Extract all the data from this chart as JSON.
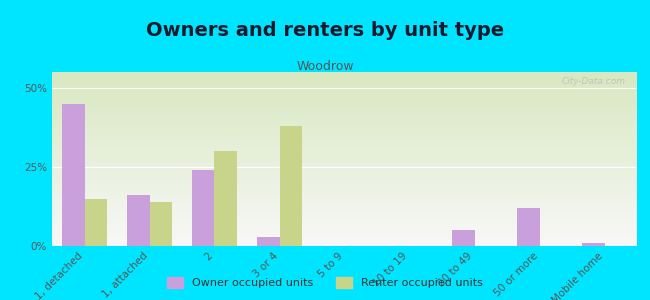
{
  "title": "Owners and renters by unit type",
  "subtitle": "Woodrow",
  "categories": [
    "1, detached",
    "1, attached",
    "2",
    "3 or 4",
    "5 to 9",
    "10 to 19",
    "20 to 49",
    "50 or more",
    "Mobile home"
  ],
  "owner_values": [
    45,
    16,
    24,
    3,
    0,
    0,
    5,
    12,
    1
  ],
  "renter_values": [
    15,
    14,
    30,
    38,
    0,
    0,
    0,
    0,
    0
  ],
  "owner_color": "#c9a0dc",
  "renter_color": "#c8d48a",
  "bg_top_left": "#d8e8c0",
  "bg_bottom_right": "#f8f8f8",
  "outer_bg": "#00e5ff",
  "ylim": [
    0,
    55
  ],
  "yticks": [
    0,
    25,
    50
  ],
  "ytick_labels": [
    "0%",
    "25%",
    "50%"
  ],
  "title_fontsize": 14,
  "subtitle_fontsize": 9,
  "legend_label_owner": "Owner occupied units",
  "legend_label_renter": "Renter occupied units",
  "bar_width": 0.35
}
